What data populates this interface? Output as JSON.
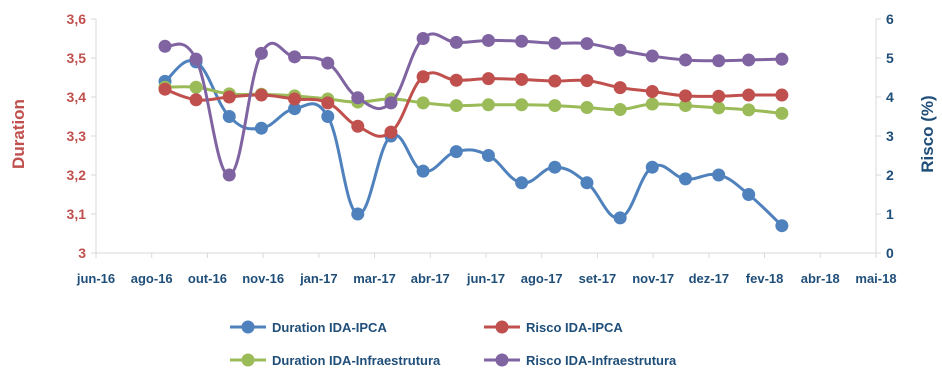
{
  "chart_data": {
    "type": "line",
    "x_ticks": [
      "jun-16",
      "ago-16",
      "out-16",
      "nov-16",
      "jan-17",
      "mar-17",
      "abr-17",
      "jun-17",
      "ago-17",
      "set-17",
      "nov-17",
      "dez-17",
      "fev-18",
      "abr-18",
      "mai-18"
    ],
    "x": [
      "2016-09-01",
      "2016-09-30",
      "2016-10-31",
      "2016-11-30",
      "2016-12-31",
      "2017-01-31",
      "2017-02-28",
      "2017-03-31",
      "2017-04-30",
      "2017-05-31",
      "2017-06-30",
      "2017-07-31",
      "2017-08-31",
      "2017-09-30",
      "2017-10-31",
      "2017-11-30",
      "2017-12-31",
      "2018-01-31",
      "2018-02-28",
      "2018-03-31",
      "2018-04-30"
    ],
    "left_axis": {
      "label": "Duration",
      "ylim": [
        3,
        3.6
      ],
      "ticks": [
        "3",
        "3,1",
        "3,2",
        "3,3",
        "3,4",
        "3,5",
        "3,6"
      ],
      "color": "#c0504d"
    },
    "right_axis": {
      "label": "Risco (%)",
      "ylim": [
        0,
        6
      ],
      "ticks": [
        "0",
        "1",
        "2",
        "3",
        "4",
        "5",
        "6"
      ],
      "color": "#1f4e79"
    },
    "series": [
      {
        "name": "Duration IDA-IPCA",
        "axis": "left",
        "color": "#4f81bd",
        "values": [
          3.44,
          3.49,
          3.35,
          3.32,
          3.37,
          3.35,
          3.1,
          3.3,
          3.21,
          3.26,
          3.25,
          3.18,
          3.22,
          3.18,
          3.09,
          3.22,
          3.19,
          3.2,
          3.15,
          3.07,
          null
        ]
      },
      {
        "name": "Risco IDA-IPCA",
        "axis": "right",
        "color": "#c0504d",
        "values": [
          4.2,
          3.93,
          4.0,
          4.05,
          3.95,
          3.85,
          3.25,
          3.1,
          4.52,
          4.43,
          4.47,
          4.45,
          4.41,
          4.42,
          4.24,
          4.14,
          4.03,
          4.02,
          4.05,
          4.05,
          null
        ]
      },
      {
        "name": "Duration IDA-Infraestrutura",
        "axis": "right",
        "color": "#9bbb59",
        "values": [
          4.25,
          4.25,
          4.08,
          4.07,
          4.03,
          3.95,
          3.87,
          3.95,
          3.85,
          3.78,
          3.8,
          3.8,
          3.78,
          3.73,
          3.68,
          3.82,
          3.78,
          3.72,
          3.67,
          3.58,
          null
        ]
      },
      {
        "name": "Risco IDA-Infraestrutura",
        "axis": "right",
        "color": "#8064a2",
        "values": [
          5.3,
          4.97,
          2.0,
          5.12,
          5.03,
          4.87,
          3.98,
          3.85,
          5.5,
          5.4,
          5.45,
          5.43,
          5.38,
          5.37,
          5.2,
          5.05,
          4.95,
          4.93,
          4.95,
          4.97,
          null
        ]
      }
    ],
    "grid": false,
    "legend_position": "bottom"
  }
}
